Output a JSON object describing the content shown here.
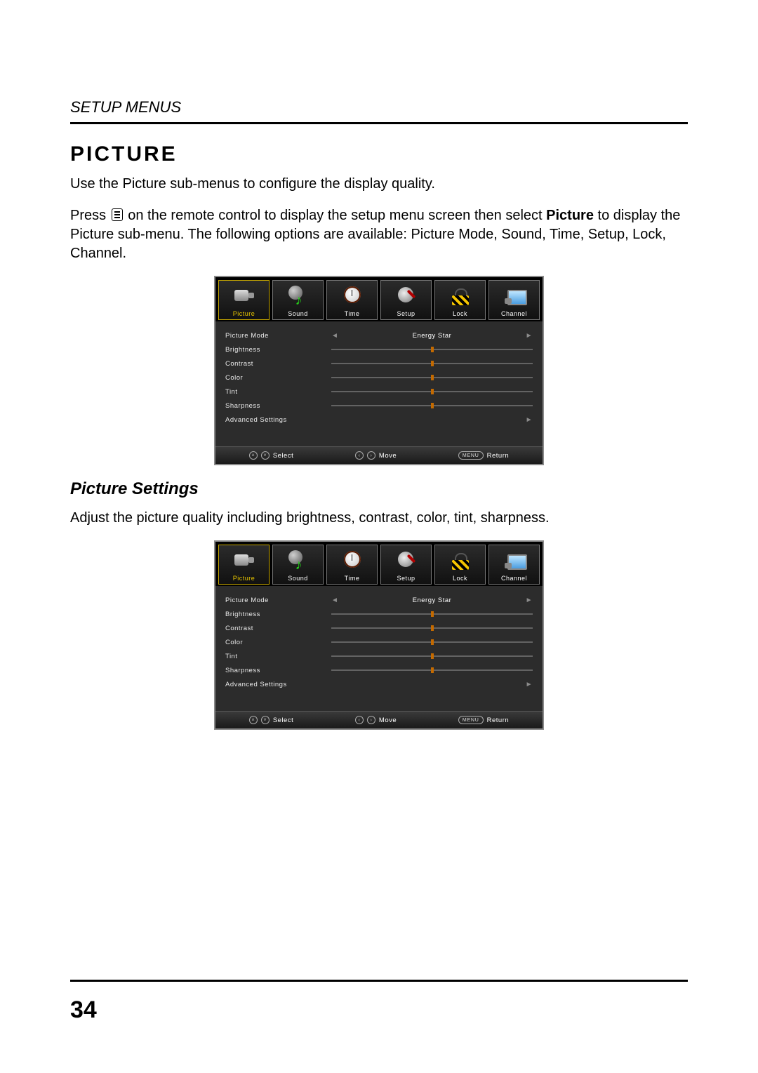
{
  "page": {
    "section_header": "SETUP MENUS",
    "title": "PICTURE",
    "intro": "Use the Picture sub-menus to configure the display quality.",
    "press_pre": "Press ",
    "press_post": " on the remote control to display the setup menu screen then select ",
    "press_bold": "Picture",
    "press_tail": " to display the Picture sub-menu. The following options are available: Picture Mode, Sound, Time, Setup, Lock, Channel.",
    "subtitle": "Picture Settings",
    "sub_body": "Adjust the picture quality including brightness, contrast, color, tint, sharpness.",
    "page_number": "34"
  },
  "osd": {
    "tabs": [
      {
        "label": "Picture",
        "active": true
      },
      {
        "label": "Sound",
        "active": false
      },
      {
        "label": "Time",
        "active": false
      },
      {
        "label": "Setup",
        "active": false
      },
      {
        "label": "Lock",
        "active": false
      },
      {
        "label": "Channel",
        "active": false
      }
    ],
    "picture_mode": {
      "label": "Picture Mode",
      "value": "Energy Star"
    },
    "sliders": [
      {
        "label": "Brightness",
        "pct": 50
      },
      {
        "label": "Contrast",
        "pct": 50
      },
      {
        "label": "Color",
        "pct": 50
      },
      {
        "label": "Tint",
        "pct": 50
      },
      {
        "label": "Sharpness",
        "pct": 50
      }
    ],
    "advanced_label": "Advanced Settings",
    "footer": {
      "select": "Select",
      "move": "Move",
      "menu_btn": "MENU",
      "return": "Return"
    },
    "colors": {
      "active_tab": "#e6c400",
      "slider_thumb": "#c46a00",
      "panel_bg": "#2c2c2c"
    }
  }
}
